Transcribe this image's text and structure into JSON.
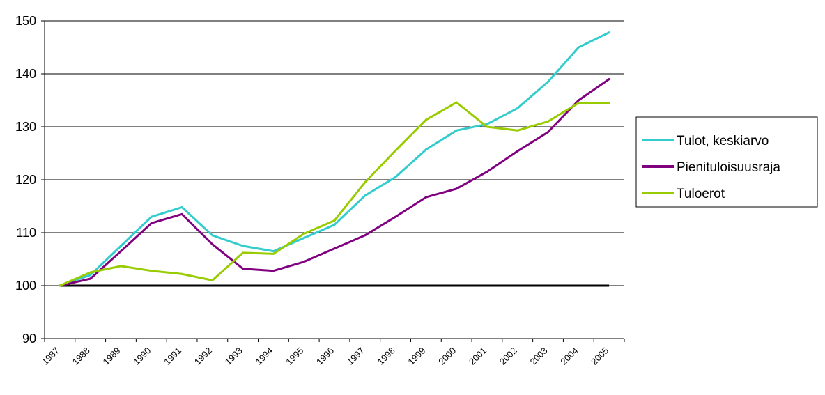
{
  "chart_data": {
    "type": "line",
    "title": "",
    "xlabel": "",
    "ylabel": "",
    "ylim": [
      90,
      150
    ],
    "yticks": [
      90,
      100,
      110,
      120,
      130,
      140,
      150
    ],
    "categories": [
      "1987",
      "1988",
      "1989",
      "1990",
      "1991",
      "1992",
      "1993",
      "1994",
      "1995",
      "1996",
      "1997",
      "1998",
      "1999",
      "2000",
      "2001",
      "2002",
      "2003",
      "2004",
      "2005"
    ],
    "grid": true,
    "legend_position": "right",
    "reference_line": {
      "value": 100,
      "color": "#000000"
    },
    "series": [
      {
        "name": "Tulot, keskiarvo",
        "color": "#33CCCC",
        "values": [
          100,
          102,
          107.5,
          113,
          114.8,
          109.5,
          107.5,
          106.5,
          109,
          111.5,
          117,
          120.5,
          125.7,
          129.3,
          130.5,
          133.5,
          138.5,
          145,
          147.8
        ]
      },
      {
        "name": "Pienituloisuusraja",
        "color": "#800080",
        "values": [
          100,
          101.3,
          106.5,
          111.8,
          113.5,
          107.8,
          103.2,
          102.8,
          104.5,
          107,
          109.5,
          113,
          116.7,
          118.3,
          121.5,
          125.4,
          129,
          135,
          139
        ]
      },
      {
        "name": "Tuloerot",
        "color": "#99CC00",
        "values": [
          100,
          102.5,
          103.7,
          102.8,
          102.2,
          101,
          106.2,
          106,
          109.8,
          112.3,
          119.5,
          125.5,
          131.3,
          134.6,
          130,
          129.3,
          131,
          134.5,
          134.5
        ]
      }
    ]
  }
}
